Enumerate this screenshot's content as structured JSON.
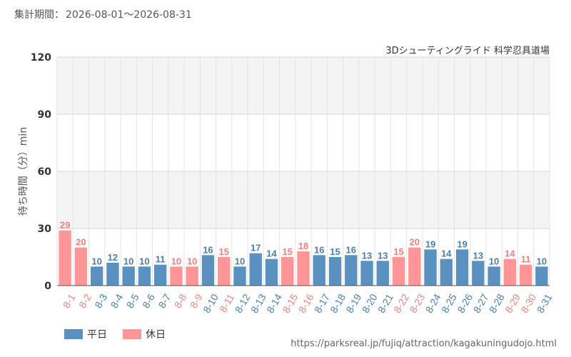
{
  "period": {
    "label": "集計期間：",
    "value": "2026-08-01～2026-08-31"
  },
  "attraction_name": "3Dシューティングライド 科学忍具道場",
  "url": "https://parksreal.jp/fujiq/attraction/kagakuningudojo.html",
  "legend": {
    "weekday_label": "平日",
    "holiday_label": "休日"
  },
  "colors": {
    "weekday": "#5b91c0",
    "weekday_text": "#4a7fae",
    "holiday": "#ff9597",
    "holiday_text": "#f08080",
    "band": "#f4f4f4",
    "grid": "#e4e4e4",
    "axis": "#555555"
  },
  "chart_data": {
    "type": "bar",
    "ylabel": "待ち時間（分）min",
    "ylim": [
      0,
      120
    ],
    "yticks": [
      0,
      30,
      60,
      90,
      120
    ],
    "categories": [
      "8-1",
      "8-2",
      "8-3",
      "8-4",
      "8-5",
      "8-6",
      "8-7",
      "8-8",
      "8-9",
      "8-10",
      "8-11",
      "8-12",
      "8-13",
      "8-14",
      "8-15",
      "8-16",
      "8-17",
      "8-18",
      "8-19",
      "8-20",
      "8-21",
      "8-22",
      "8-23",
      "8-24",
      "8-25",
      "8-26",
      "8-27",
      "8-28",
      "8-29",
      "8-30",
      "8-31"
    ],
    "values": [
      29,
      20,
      10,
      12,
      10,
      10,
      11,
      10,
      10,
      16,
      15,
      10,
      17,
      14,
      15,
      18,
      16,
      15,
      16,
      13,
      13,
      15,
      20,
      19,
      14,
      19,
      13,
      10,
      14,
      11,
      10
    ],
    "day_types": [
      "holiday",
      "holiday",
      "weekday",
      "weekday",
      "weekday",
      "weekday",
      "weekday",
      "holiday",
      "holiday",
      "weekday",
      "holiday",
      "weekday",
      "weekday",
      "weekday",
      "holiday",
      "holiday",
      "weekday",
      "weekday",
      "weekday",
      "weekday",
      "weekday",
      "holiday",
      "holiday",
      "weekday",
      "weekday",
      "weekday",
      "weekday",
      "weekday",
      "holiday",
      "holiday",
      "weekday"
    ],
    "series": [
      {
        "name": "平日",
        "key": "weekday"
      },
      {
        "name": "休日",
        "key": "holiday"
      }
    ],
    "legend_position": "bottom-left"
  }
}
